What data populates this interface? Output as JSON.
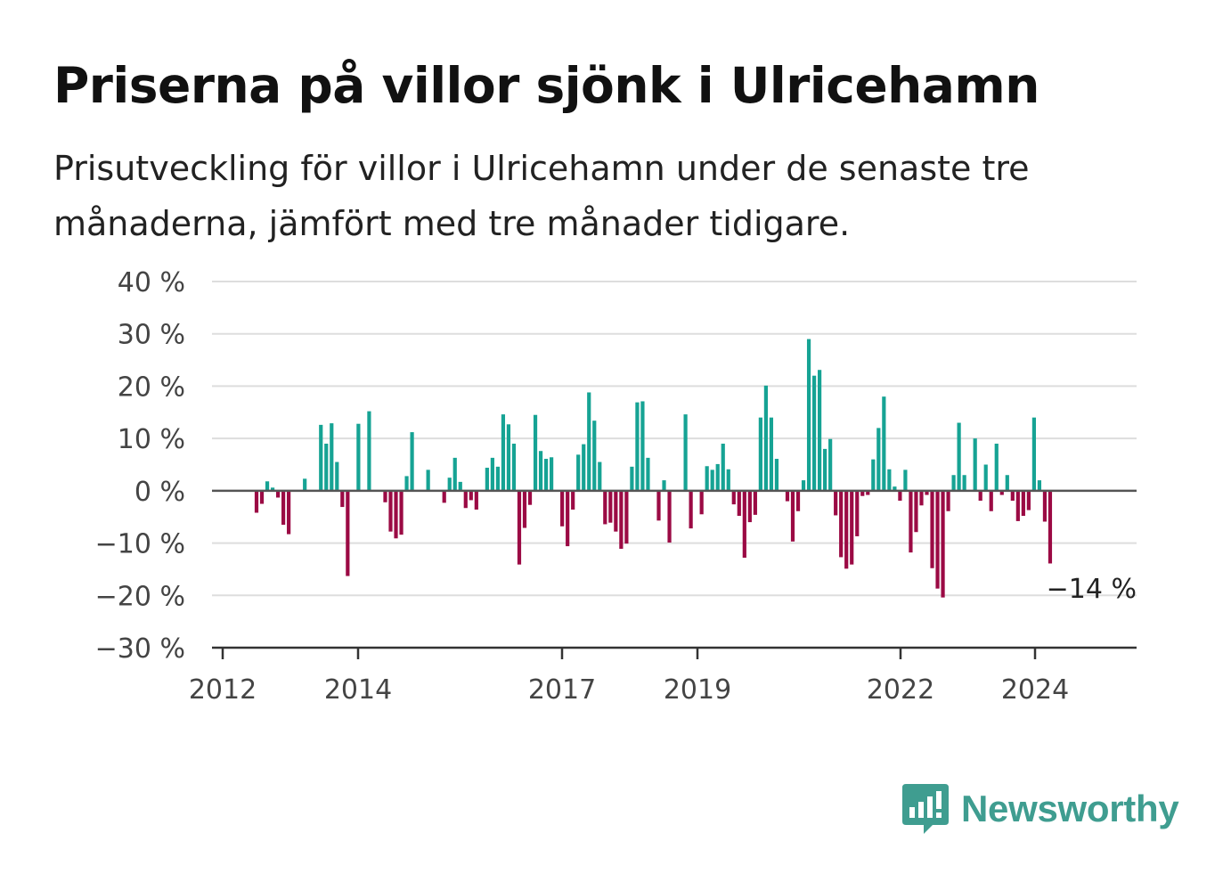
{
  "header": {
    "title": "Priserna på villor sjönk i Ulricehamn",
    "subtitle": "Prisutveckling för villor i Ulricehamn under de senaste tre månaderna, jämfört med tre månader tidigare."
  },
  "brand": {
    "name": "Newsworthy",
    "color": "#3f9d90"
  },
  "colors": {
    "positive": "#16a394",
    "negative": "#9b0a44",
    "grid": "#dddddd",
    "axis": "#333333"
  },
  "chart_data": {
    "type": "bar",
    "title": "",
    "xlabel": "",
    "ylabel": "",
    "ylim": [
      -30,
      40
    ],
    "y_ticks": [
      40,
      30,
      20,
      10,
      0,
      -10,
      -20,
      -30
    ],
    "y_tick_labels": [
      "40 %",
      "30 %",
      "20 %",
      "10 %",
      "0 %",
      "−10 %",
      "−20 %",
      "−30 %"
    ],
    "x_tick_labels": [
      "2012",
      "2014",
      "2017",
      "2019",
      "2022",
      "2024"
    ],
    "last_value_label": "−14 %",
    "grid": true,
    "values": [
      -4.2,
      -2.5,
      1.8,
      0.6,
      -1.3,
      -6.5,
      -8.3,
      0,
      0,
      2.3,
      0,
      0,
      12.6,
      9.0,
      12.9,
      5.5,
      -3.1,
      -16.3,
      0,
      12.8,
      0,
      15.2,
      0,
      0,
      -2.2,
      -7.8,
      -9.1,
      -8.4,
      2.8,
      11.2,
      0,
      0,
      4.0,
      0,
      0,
      -2.3,
      2.5,
      6.3,
      1.7,
      -3.3,
      -1.8,
      -3.6,
      0,
      4.4,
      6.3,
      4.6,
      14.6,
      12.7,
      9.0,
      -14.1,
      -7.1,
      -2.7,
      14.5,
      7.6,
      6.1,
      6.4,
      0,
      -6.8,
      -10.6,
      -3.6,
      6.9,
      8.9,
      18.8,
      13.4,
      5.5,
      -6.4,
      -6.1,
      -7.8,
      -11.1,
      -10.1,
      4.6,
      16.9,
      17.1,
      6.3,
      0,
      -5.7,
      2.0,
      -9.9,
      0,
      0,
      14.6,
      -7.2,
      0,
      -4.5,
      4.7,
      4.0,
      5.1,
      9.0,
      4.1,
      -2.6,
      -4.8,
      -12.8,
      -6.0,
      -4.6,
      14.0,
      20.1,
      14.0,
      6.1,
      0,
      -2.0,
      -9.7,
      -3.9,
      2.0,
      29.0,
      22.0,
      23.1,
      8.0,
      9.9,
      -4.7,
      -12.7,
      -14.9,
      -14.1,
      -8.7,
      -1.0,
      -0.8,
      6.0,
      12.0,
      18.0,
      4.1,
      0.8,
      -1.9,
      4.0,
      -11.8,
      -7.9,
      -2.8,
      -0.8,
      -14.8,
      -18.7,
      -20.4,
      -3.9,
      3.0,
      13.0,
      3.0,
      0,
      10.0,
      -1.9,
      5.0,
      -3.9,
      9.0,
      -0.8,
      3.0,
      -1.9,
      -5.8,
      -4.8,
      -3.7,
      14.0,
      2.0,
      -5.9,
      -13.9
    ]
  }
}
